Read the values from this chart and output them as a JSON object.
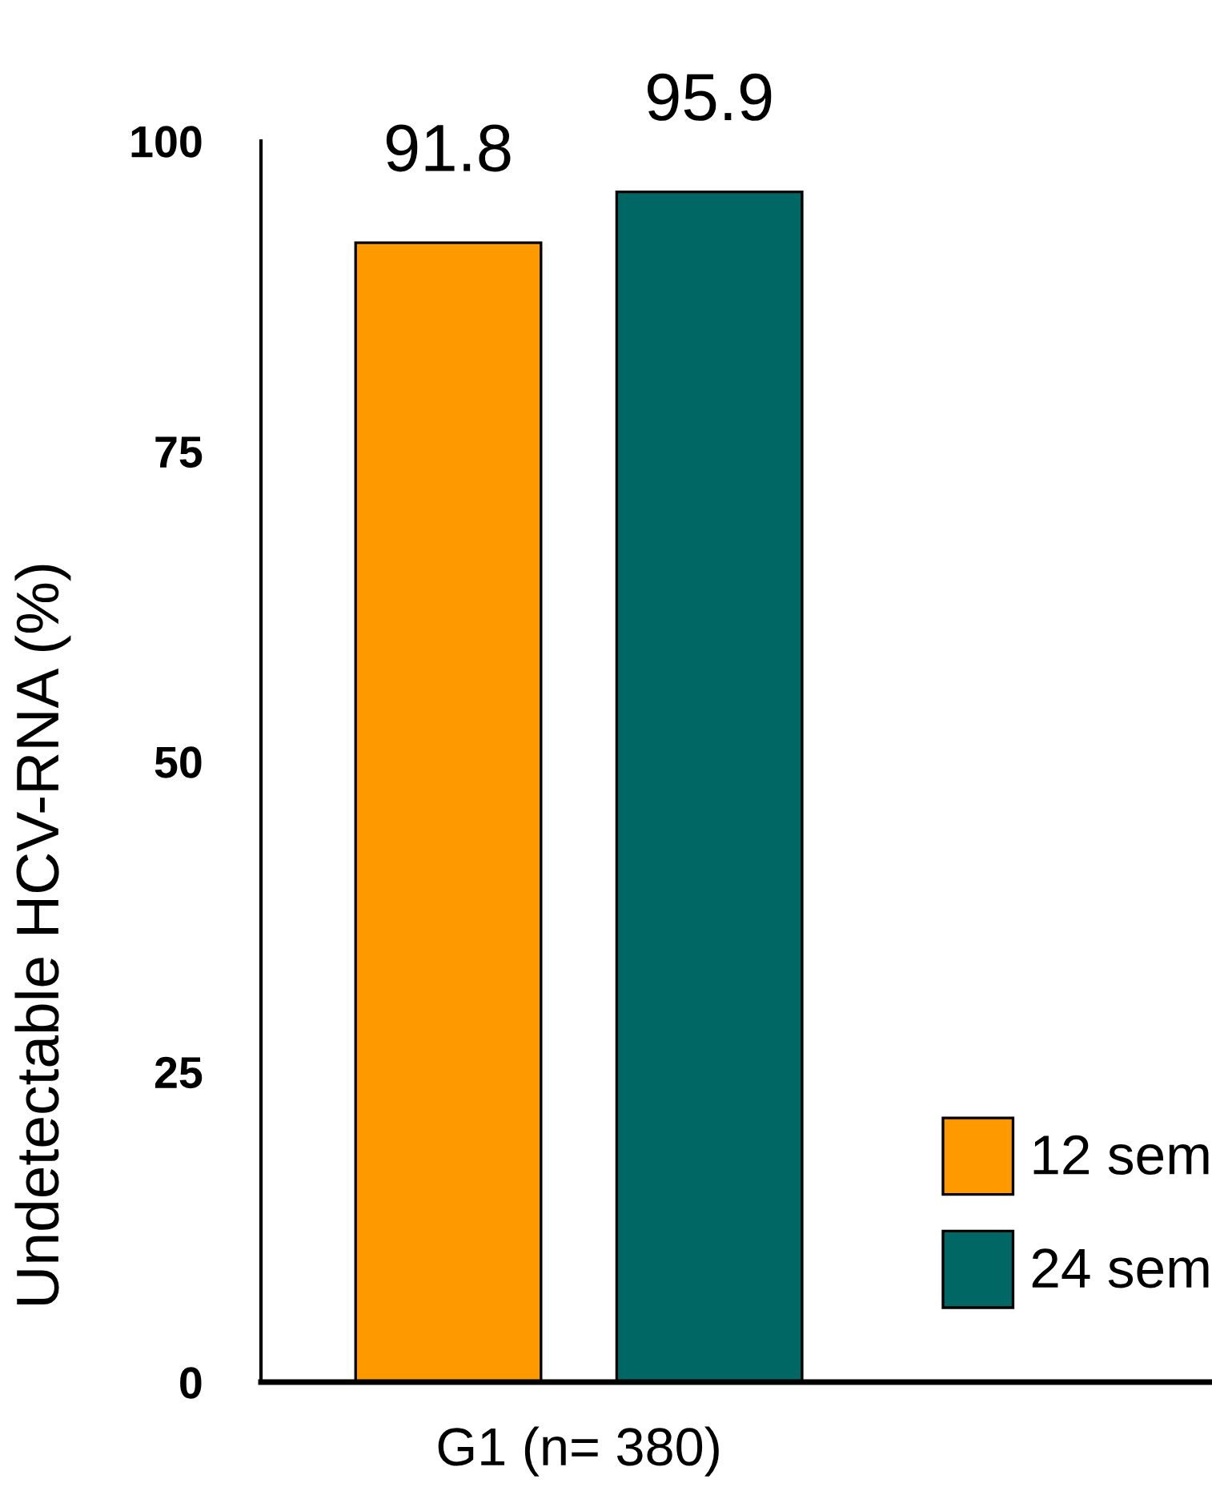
{
  "chart_data": {
    "type": "bar",
    "categories": [
      "G1 (n= 380)"
    ],
    "series": [
      {
        "name": "12 sem",
        "color": "#ff9900",
        "values": [
          91.8
        ]
      },
      {
        "name": "24 sem",
        "color": "#006764",
        "values": [
          95.9
        ]
      }
    ],
    "ylabel": "Undetectable HCV-RNA (%)",
    "ylim": [
      0,
      100
    ],
    "yticks": [
      0,
      25,
      50,
      75,
      100
    ],
    "data_labels": true,
    "legend": "bottom right",
    "grid": false
  }
}
